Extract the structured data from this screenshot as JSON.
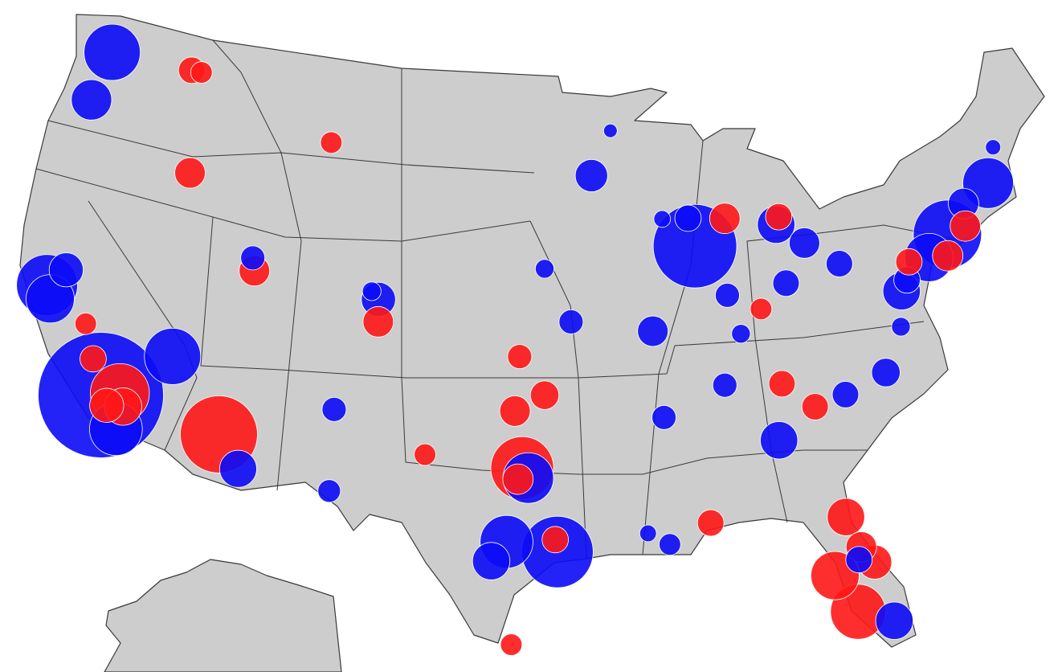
{
  "map": {
    "colors": {
      "dem": "#0b0bf7",
      "rep": "#ff1717"
    },
    "bubbles": [
      {
        "lon": -118.2,
        "lat": 34.05,
        "party": "dem",
        "votes": 676
      },
      {
        "lon": -87.7,
        "lat": 41.9,
        "party": "dem",
        "votes": 300
      },
      {
        "lon": -112.1,
        "lat": 33.45,
        "party": "rep",
        "votes": 256
      },
      {
        "lon": -95.4,
        "lat": 29.8,
        "party": "dem",
        "votes": 220
      },
      {
        "lon": -73.95,
        "lat": 40.75,
        "party": "dem",
        "votes": 200
      },
      {
        "lon": -97.1,
        "lat": 33.2,
        "party": "rep",
        "votes": 170
      },
      {
        "lon": -122.25,
        "lat": 37.8,
        "party": "dem",
        "votes": 160
      },
      {
        "lon": -117.3,
        "lat": 34.3,
        "party": "rep",
        "votes": 150
      },
      {
        "lon": -115.1,
        "lat": 36.2,
        "party": "dem",
        "votes": 136
      },
      {
        "lon": -122.3,
        "lat": 47.6,
        "party": "dem",
        "votes": 136
      },
      {
        "lon": -81.8,
        "lat": 26.4,
        "party": "rep",
        "votes": 130
      },
      {
        "lon": -97.8,
        "lat": 30.2,
        "party": "dem",
        "votes": 120
      },
      {
        "lon": -117.1,
        "lat": 32.85,
        "party": "dem",
        "votes": 120
      },
      {
        "lon": -71.1,
        "lat": 42.35,
        "party": "dem",
        "votes": 110
      },
      {
        "lon": -96.8,
        "lat": 32.8,
        "party": "dem",
        "votes": 110
      },
      {
        "lon": -82.6,
        "lat": 28.0,
        "party": "rep",
        "votes": 100
      },
      {
        "lon": -75.2,
        "lat": 40.0,
        "party": "dem",
        "votes": 100
      },
      {
        "lon": -121.9,
        "lat": 37.3,
        "party": "dem",
        "votes": 100
      },
      {
        "lon": -122.7,
        "lat": 45.5,
        "party": "dem",
        "votes": 70
      },
      {
        "lon": -83.1,
        "lat": 42.4,
        "party": "dem",
        "votes": 60
      },
      {
        "lon": -84.4,
        "lat": 33.75,
        "party": "dem",
        "votes": 60
      },
      {
        "lon": -98.5,
        "lat": 29.4,
        "party": "dem",
        "votes": 60
      },
      {
        "lon": -80.25,
        "lat": 25.8,
        "party": "dem",
        "votes": 60
      },
      {
        "lon": -77.0,
        "lat": 38.9,
        "party": "dem",
        "votes": 60
      },
      {
        "lon": -110.9,
        "lat": 32.2,
        "party": "dem",
        "votes": 59
      },
      {
        "lon": -81.7,
        "lat": 30.3,
        "party": "rep",
        "votes": 60
      },
      {
        "lon": -117.0,
        "lat": 33.8,
        "party": "rep",
        "votes": 60
      },
      {
        "lon": -121.5,
        "lat": 38.6,
        "party": "dem",
        "votes": 50
      },
      {
        "lon": -104.9,
        "lat": 39.7,
        "party": "dem",
        "votes": 50
      },
      {
        "lon": -80.7,
        "lat": 28.3,
        "party": "rep",
        "votes": 50
      },
      {
        "lon": -117.8,
        "lat": 33.7,
        "party": "rep",
        "votes": 50
      },
      {
        "lon": -93.3,
        "lat": 45.0,
        "party": "dem",
        "votes": 45
      },
      {
        "lon": -81.7,
        "lat": 41.5,
        "party": "dem",
        "votes": 40
      },
      {
        "lon": -90.3,
        "lat": 38.6,
        "party": "dem",
        "votes": 40
      },
      {
        "lon": -72.7,
        "lat": 41.8,
        "party": "dem",
        "votes": 40
      },
      {
        "lon": -97.3,
        "lat": 32.75,
        "party": "rep",
        "votes": 40
      },
      {
        "lon": -111.7,
        "lat": 40.2,
        "party": "rep",
        "votes": 40
      },
      {
        "lon": -116.2,
        "lat": 43.6,
        "party": "rep",
        "votes": 40
      },
      {
        "lon": -97.5,
        "lat": 35.5,
        "party": "rep",
        "votes": 40
      },
      {
        "lon": -104.8,
        "lat": 38.8,
        "party": "rep",
        "votes": 40
      },
      {
        "lon": -85.9,
        "lat": 42.9,
        "party": "rep",
        "votes": 40
      },
      {
        "lon": -74.2,
        "lat": 39.9,
        "party": "rep",
        "votes": 40
      },
      {
        "lon": -72.9,
        "lat": 40.9,
        "party": "rep",
        "votes": 40
      },
      {
        "lon": -81.2,
        "lat": 29.0,
        "party": "rep",
        "votes": 40
      },
      {
        "lon": -78.6,
        "lat": 35.8,
        "party": "dem",
        "votes": 35
      },
      {
        "lon": -96.0,
        "lat": 36.15,
        "party": "rep",
        "votes": 35
      },
      {
        "lon": -83.0,
        "lat": 40.0,
        "party": "dem",
        "votes": 30
      },
      {
        "lon": -80.0,
        "lat": 40.45,
        "party": "dem",
        "votes": 30
      },
      {
        "lon": -81.4,
        "lat": 28.5,
        "party": "dem",
        "votes": 30
      },
      {
        "lon": -87.95,
        "lat": 43.05,
        "party": "dem",
        "votes": 30
      },
      {
        "lon": -80.8,
        "lat": 35.2,
        "party": "dem",
        "votes": 30
      },
      {
        "lon": -76.6,
        "lat": 39.3,
        "party": "dem",
        "votes": 30
      },
      {
        "lon": -119.0,
        "lat": 35.4,
        "party": "rep",
        "votes": 30
      },
      {
        "lon": -95.5,
        "lat": 30.3,
        "party": "rep",
        "votes": 30
      },
      {
        "lon": -117.4,
        "lat": 47.7,
        "party": "rep",
        "votes": 30
      },
      {
        "lon": -83.9,
        "lat": 36.0,
        "party": "rep",
        "votes": 30
      },
      {
        "lon": -82.4,
        "lat": 34.9,
        "party": "rep",
        "votes": 30
      },
      {
        "lon": -82.9,
        "lat": 42.7,
        "party": "rep",
        "votes": 30
      },
      {
        "lon": -76.3,
        "lat": 40.0,
        "party": "rep",
        "votes": 30
      },
      {
        "lon": -88.1,
        "lat": 30.7,
        "party": "rep",
        "votes": 30
      },
      {
        "lon": -106.6,
        "lat": 35.1,
        "party": "dem",
        "votes": 25
      },
      {
        "lon": -111.9,
        "lat": 40.7,
        "party": "dem",
        "votes": 25
      },
      {
        "lon": -94.6,
        "lat": 39.1,
        "party": "dem",
        "votes": 25
      },
      {
        "lon": -90.0,
        "lat": 35.1,
        "party": "dem",
        "votes": 25
      },
      {
        "lon": -86.8,
        "lat": 36.2,
        "party": "dem",
        "votes": 25
      },
      {
        "lon": -86.2,
        "lat": 39.8,
        "party": "dem",
        "votes": 25
      },
      {
        "lon": -97.3,
        "lat": 37.7,
        "party": "rep",
        "votes": 25
      },
      {
        "lon": -106.4,
        "lat": 31.8,
        "party": "dem",
        "votes": 22
      },
      {
        "lon": -90.1,
        "lat": 29.95,
        "party": "dem",
        "votes": 20
      },
      {
        "lon": -119.8,
        "lat": 36.7,
        "party": "rep",
        "votes": 20
      },
      {
        "lon": -101.9,
        "lat": 33.6,
        "party": "rep",
        "votes": 20
      },
      {
        "lon": -84.5,
        "lat": 39.1,
        "party": "rep",
        "votes": 20
      },
      {
        "lon": -97.5,
        "lat": 26.0,
        "party": "rep",
        "votes": 20
      },
      {
        "lon": -108.5,
        "lat": 45.8,
        "party": "rep",
        "votes": 20
      },
      {
        "lon": -116.8,
        "lat": 47.7,
        "party": "rep",
        "votes": 20
      },
      {
        "lon": -105.3,
        "lat": 40.0,
        "party": "dem",
        "votes": 15
      },
      {
        "lon": -96.0,
        "lat": 41.25,
        "party": "dem",
        "votes": 15
      },
      {
        "lon": -77.4,
        "lat": 37.5,
        "party": "dem",
        "votes": 15
      },
      {
        "lon": -85.7,
        "lat": 38.2,
        "party": "dem",
        "votes": 15
      },
      {
        "lon": -91.1,
        "lat": 30.45,
        "party": "dem",
        "votes": 12
      },
      {
        "lon": -89.4,
        "lat": 43.1,
        "party": "dem",
        "votes": 12
      },
      {
        "lon": -92.1,
        "lat": 46.8,
        "party": "dem",
        "votes": 8
      },
      {
        "lon": -70.3,
        "lat": 43.7,
        "party": "dem",
        "votes": 10
      }
    ]
  }
}
